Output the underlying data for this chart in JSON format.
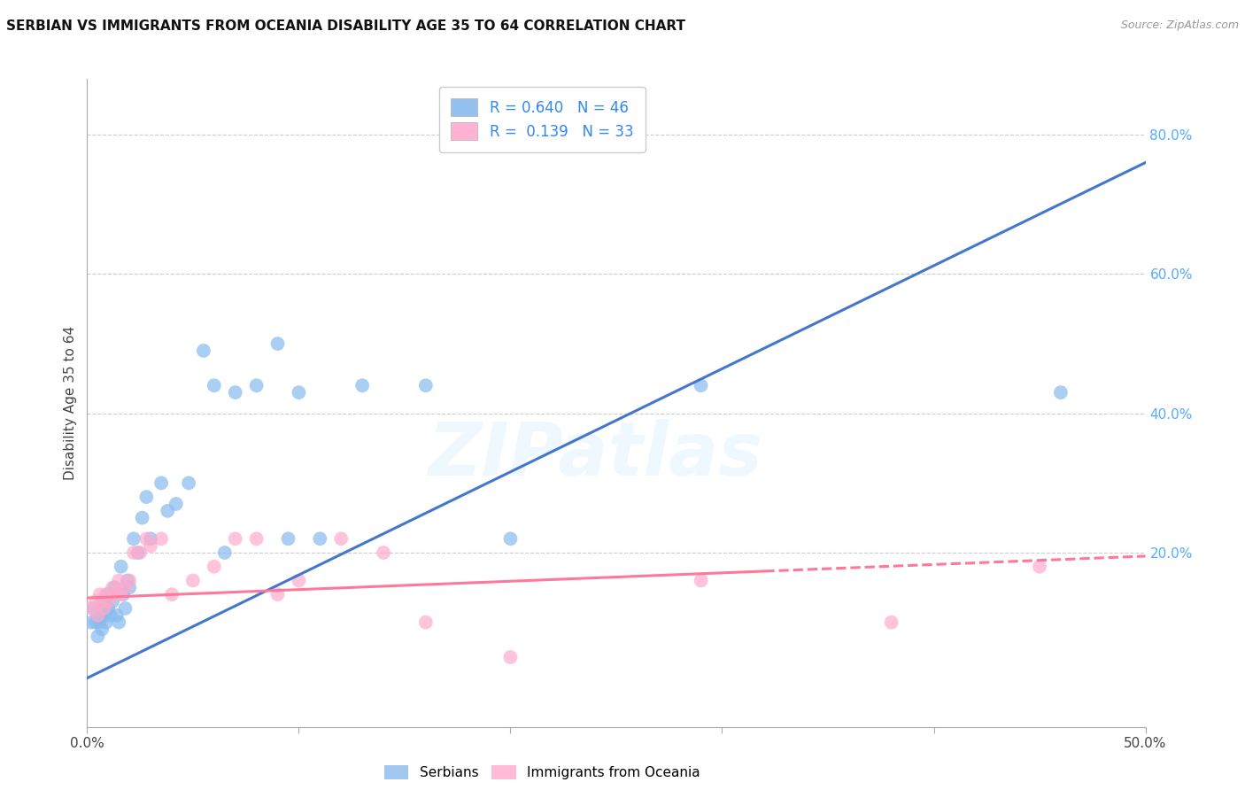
{
  "title": "SERBIAN VS IMMIGRANTS FROM OCEANIA DISABILITY AGE 35 TO 64 CORRELATION CHART",
  "source": "Source: ZipAtlas.com",
  "xlabel": "",
  "ylabel": "Disability Age 35 to 64",
  "xmin": 0.0,
  "xmax": 0.5,
  "ymin": -0.05,
  "ymax": 0.88,
  "watermark": "ZIPatlas",
  "legend_r_blue": "0.640",
  "legend_n_blue": "46",
  "legend_r_pink": "0.139",
  "legend_n_pink": "33",
  "blue_color": "#88BBEE",
  "pink_color": "#FFAACC",
  "blue_line_color": "#4477CC",
  "pink_line_color": "#FF7799",
  "right_yticks": [
    0.2,
    0.4,
    0.6,
    0.8
  ],
  "right_yticklabels": [
    "20.0%",
    "40.0%",
    "60.0%",
    "80.0%"
  ],
  "xticks": [
    0.0,
    0.1,
    0.2,
    0.3,
    0.4,
    0.5
  ],
  "xticklabels": [
    "0.0%",
    "",
    "",
    "",
    "",
    "50.0%"
  ],
  "blue_x": [
    0.002,
    0.003,
    0.004,
    0.005,
    0.005,
    0.006,
    0.007,
    0.007,
    0.008,
    0.008,
    0.009,
    0.01,
    0.01,
    0.011,
    0.012,
    0.013,
    0.014,
    0.015,
    0.016,
    0.017,
    0.018,
    0.019,
    0.02,
    0.022,
    0.024,
    0.026,
    0.028,
    0.03,
    0.035,
    0.038,
    0.042,
    0.048,
    0.055,
    0.06,
    0.065,
    0.07,
    0.08,
    0.09,
    0.095,
    0.1,
    0.11,
    0.13,
    0.16,
    0.2,
    0.29,
    0.46
  ],
  "blue_y": [
    0.1,
    0.12,
    0.1,
    0.08,
    0.11,
    0.1,
    0.09,
    0.12,
    0.11,
    0.13,
    0.1,
    0.12,
    0.14,
    0.11,
    0.13,
    0.15,
    0.11,
    0.1,
    0.18,
    0.14,
    0.12,
    0.16,
    0.15,
    0.22,
    0.2,
    0.25,
    0.28,
    0.22,
    0.3,
    0.26,
    0.27,
    0.3,
    0.49,
    0.44,
    0.2,
    0.43,
    0.44,
    0.5,
    0.22,
    0.43,
    0.22,
    0.44,
    0.44,
    0.22,
    0.44,
    0.43
  ],
  "pink_x": [
    0.002,
    0.004,
    0.005,
    0.006,
    0.007,
    0.008,
    0.009,
    0.01,
    0.012,
    0.013,
    0.015,
    0.016,
    0.018,
    0.02,
    0.022,
    0.025,
    0.028,
    0.03,
    0.035,
    0.04,
    0.05,
    0.06,
    0.07,
    0.08,
    0.09,
    0.1,
    0.12,
    0.14,
    0.16,
    0.2,
    0.29,
    0.38,
    0.45
  ],
  "pink_y": [
    0.12,
    0.13,
    0.11,
    0.14,
    0.13,
    0.12,
    0.14,
    0.13,
    0.15,
    0.14,
    0.16,
    0.14,
    0.15,
    0.16,
    0.2,
    0.2,
    0.22,
    0.21,
    0.22,
    0.14,
    0.16,
    0.18,
    0.22,
    0.22,
    0.14,
    0.16,
    0.22,
    0.2,
    0.1,
    0.05,
    0.16,
    0.1,
    0.18
  ],
  "blue_line_x0": 0.0,
  "blue_line_y0": 0.02,
  "blue_line_x1": 0.5,
  "blue_line_y1": 0.76,
  "pink_line_x0": 0.0,
  "pink_line_y0": 0.135,
  "pink_line_x1": 0.5,
  "pink_line_y1": 0.195
}
